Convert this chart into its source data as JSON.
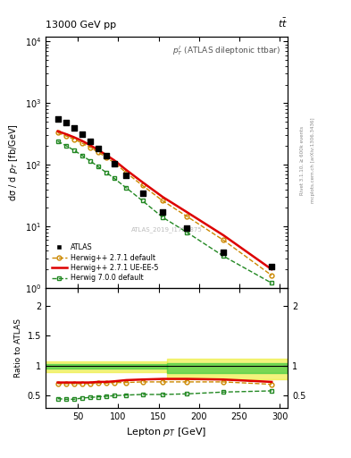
{
  "title_top": "13000 GeV pp",
  "title_top_right": "tt",
  "plot_label": "$p_{T}^{l}$ (ATLAS dileptonic ttbar)",
  "watermark": "ATLAS_2019_I1759875",
  "right_label_top": "Rivet 3.1.10, ≥ 600k events",
  "right_label_bot": "mcplots.cern.ch [arXiv:1306.3436]",
  "xlabel": "Lepton $p_{T}$ [GeV]",
  "ylabel": "dσ / d $p_{T}$ [fb/GeV]",
  "ylabel_ratio": "Ratio to ATLAS",
  "atlas_x": [
    25,
    35,
    45,
    55,
    65,
    75,
    85,
    95,
    110,
    130,
    155,
    185,
    230,
    290
  ],
  "atlas_y": [
    560,
    480,
    390,
    310,
    240,
    185,
    140,
    105,
    68,
    35,
    17,
    9.5,
    3.8,
    2.2
  ],
  "hpp271_default_x": [
    25,
    35,
    45,
    55,
    65,
    75,
    85,
    95,
    110,
    130,
    155,
    185,
    230,
    290
  ],
  "hpp271_default_y": [
    330,
    295,
    260,
    225,
    192,
    160,
    132,
    108,
    74,
    46,
    26,
    14.5,
    6.0,
    1.6
  ],
  "hpp271_uee5_x": [
    25,
    35,
    45,
    55,
    65,
    75,
    85,
    95,
    110,
    130,
    155,
    185,
    230,
    290
  ],
  "hpp271_uee5_y": [
    350,
    315,
    280,
    245,
    208,
    174,
    144,
    118,
    82,
    52,
    30,
    17,
    7.2,
    2.0
  ],
  "h700_default_x": [
    25,
    35,
    45,
    55,
    65,
    75,
    85,
    95,
    110,
    130,
    155,
    185,
    230,
    290
  ],
  "h700_default_y": [
    240,
    205,
    172,
    142,
    116,
    93,
    75,
    60,
    42,
    26,
    14,
    8.0,
    3.3,
    1.2
  ],
  "ratio_hpp271_default_x": [
    25,
    35,
    45,
    55,
    65,
    75,
    85,
    95,
    110,
    130,
    155,
    185,
    230,
    290
  ],
  "ratio_hpp271_default_y": [
    0.7,
    0.7,
    0.7,
    0.7,
    0.7,
    0.71,
    0.71,
    0.72,
    0.72,
    0.73,
    0.73,
    0.73,
    0.73,
    0.69
  ],
  "ratio_hpp271_uee5_x": [
    25,
    35,
    45,
    55,
    65,
    75,
    85,
    95,
    110,
    130,
    155,
    185,
    230,
    290
  ],
  "ratio_hpp271_uee5_y": [
    0.72,
    0.72,
    0.72,
    0.72,
    0.72,
    0.73,
    0.73,
    0.74,
    0.76,
    0.77,
    0.78,
    0.78,
    0.77,
    0.73
  ],
  "ratio_h700_default_x": [
    25,
    35,
    45,
    55,
    65,
    75,
    85,
    95,
    110,
    130,
    155,
    185,
    230,
    290
  ],
  "ratio_h700_default_y": [
    0.45,
    0.44,
    0.44,
    0.46,
    0.47,
    0.48,
    0.49,
    0.5,
    0.51,
    0.52,
    0.52,
    0.53,
    0.56,
    0.58
  ],
  "color_atlas": "#000000",
  "color_hpp271_default": "#cc8800",
  "color_hpp271_uee5": "#dd0000",
  "color_h700_default": "#228822",
  "ylim_main": [
    1.0,
    12000
  ],
  "ylim_ratio": [
    0.3,
    2.3
  ],
  "xlim": [
    10,
    310
  ],
  "band1_xmin": 10,
  "band1_xmax": 160,
  "band1_yellow_lo": 0.9,
  "band1_yellow_hi": 1.08,
  "band1_green_lo": 0.95,
  "band1_green_hi": 1.03,
  "band2_xmin": 160,
  "band2_xmax": 310,
  "band2_yellow_lo": 0.78,
  "band2_yellow_hi": 1.12,
  "band2_green_lo": 0.88,
  "band2_green_hi": 1.05
}
